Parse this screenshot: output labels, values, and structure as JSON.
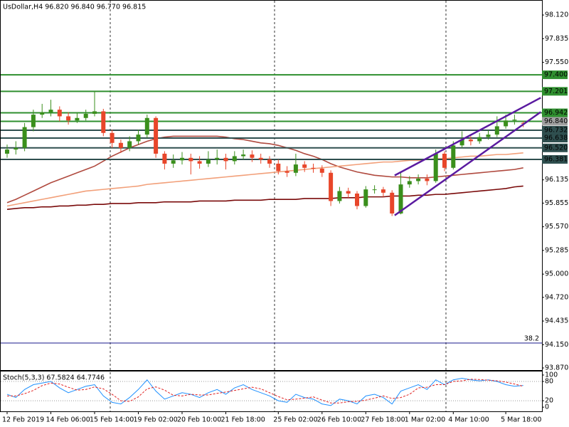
{
  "chart_data": [
    {
      "type": "candlestick",
      "title": "UsDollar,H4  96.820 96.840 96.770 96.815",
      "categories": [
        "12 Feb 2019",
        null,
        null,
        null,
        null,
        "14 Feb 06:00",
        null,
        null,
        null,
        null,
        "15 Feb 14:00",
        null,
        null,
        null,
        null,
        "19 Feb 02:00",
        null,
        null,
        null,
        null,
        "20 Feb 10:00",
        null,
        null,
        null,
        null,
        "21 Feb 18:00",
        null,
        null,
        null,
        null,
        null,
        "25 Feb 02:00",
        null,
        null,
        null,
        null,
        "26 Feb 10:00",
        null,
        null,
        null,
        null,
        "27 Feb 18:00",
        null,
        null,
        null,
        null,
        "1 Mar 02:00",
        null,
        null,
        null,
        null,
        "4 Mar 10:00",
        null,
        null,
        null,
        null,
        null,
        "5 Mar 18:00",
        null,
        null
      ],
      "open": [
        96.45,
        96.5,
        96.52,
        96.77,
        96.92,
        96.95,
        96.98,
        96.9,
        96.85,
        96.88,
        96.93,
        96.96,
        96.7,
        96.58,
        96.52,
        96.6,
        96.68,
        96.88,
        96.45,
        96.33,
        96.37,
        96.4,
        96.36,
        96.33,
        96.38,
        96.4,
        96.36,
        96.42,
        96.44,
        96.4,
        96.38,
        96.33,
        96.24,
        96.22,
        96.32,
        96.28,
        96.27,
        96.22,
        95.88,
        96.0,
        95.97,
        95.82,
        96.02,
        96.02,
        95.98,
        95.73,
        96.08,
        96.12,
        96.15,
        96.12,
        96.45,
        96.28,
        96.55,
        96.62,
        96.6,
        96.65,
        96.68,
        96.78,
        96.85,
        96.82
      ],
      "high": [
        96.56,
        96.6,
        96.82,
        96.98,
        97.05,
        97.1,
        97.02,
        96.95,
        96.94,
        96.98,
        97.2,
        96.99,
        96.74,
        96.62,
        96.66,
        96.74,
        96.92,
        96.9,
        96.48,
        96.44,
        96.47,
        96.45,
        96.42,
        96.48,
        96.5,
        96.45,
        96.48,
        96.5,
        96.49,
        96.45,
        96.42,
        96.38,
        96.3,
        96.45,
        96.36,
        96.33,
        96.31,
        96.25,
        96.05,
        96.04,
        96.0,
        96.06,
        96.07,
        96.05,
        96.01,
        96.22,
        96.18,
        96.2,
        96.2,
        96.5,
        96.48,
        96.6,
        96.72,
        96.66,
        96.7,
        96.73,
        96.9,
        96.92,
        96.92,
        96.84
      ],
      "low": [
        96.4,
        96.44,
        96.48,
        96.72,
        96.88,
        96.9,
        96.84,
        96.8,
        96.82,
        96.85,
        96.9,
        96.66,
        96.52,
        96.46,
        96.48,
        96.56,
        96.64,
        96.4,
        96.26,
        96.28,
        96.32,
        96.2,
        96.27,
        96.29,
        96.32,
        96.26,
        96.32,
        96.38,
        96.35,
        96.33,
        96.28,
        96.2,
        96.17,
        96.18,
        96.23,
        96.22,
        96.17,
        95.82,
        95.85,
        95.92,
        95.78,
        95.8,
        95.97,
        95.93,
        95.7,
        95.72,
        96.04,
        96.08,
        96.07,
        96.1,
        96.24,
        96.26,
        96.52,
        96.55,
        96.57,
        96.62,
        96.65,
        96.75,
        96.8,
        96.77
      ],
      "close": [
        96.5,
        96.52,
        96.77,
        96.92,
        96.95,
        96.98,
        96.9,
        96.85,
        96.88,
        96.93,
        96.96,
        96.7,
        96.58,
        96.52,
        96.6,
        96.68,
        96.88,
        96.45,
        96.33,
        96.37,
        96.4,
        96.36,
        96.33,
        96.38,
        96.4,
        96.36,
        96.42,
        96.44,
        96.4,
        96.38,
        96.33,
        96.24,
        96.22,
        96.32,
        96.28,
        96.27,
        96.22,
        95.88,
        96.0,
        95.97,
        95.82,
        96.02,
        96.02,
        95.98,
        95.73,
        96.08,
        96.12,
        96.15,
        96.12,
        96.45,
        96.28,
        96.55,
        96.62,
        96.6,
        96.65,
        96.68,
        96.78,
        96.85,
        96.86,
        96.815
      ],
      "up_color": "#3a8f1c",
      "down_color": "#e8462a",
      "series": [
        {
          "color": "#b04a3f",
          "values": [
            95.86,
            95.9,
            95.95,
            96.0,
            96.05,
            96.1,
            96.14,
            96.18,
            96.22,
            96.26,
            96.3,
            96.36,
            96.42,
            96.47,
            96.52,
            96.56,
            96.6,
            96.63,
            96.65,
            96.66,
            96.66,
            96.66,
            96.66,
            96.66,
            96.66,
            96.65,
            96.63,
            96.62,
            96.6,
            96.58,
            96.57,
            96.55,
            96.52,
            96.49,
            96.45,
            96.42,
            96.38,
            96.33,
            96.29,
            96.26,
            96.23,
            96.21,
            96.19,
            96.18,
            96.17,
            96.17,
            96.16,
            96.16,
            96.16,
            96.17,
            96.18,
            96.19,
            96.2,
            96.21,
            96.22,
            96.23,
            96.24,
            96.25,
            96.26,
            96.28
          ]
        },
        {
          "color": "#f2a07a",
          "values": [
            95.82,
            95.84,
            95.86,
            95.88,
            95.9,
            95.92,
            95.94,
            95.96,
            95.98,
            96.0,
            96.01,
            96.02,
            96.03,
            96.04,
            96.05,
            96.06,
            96.08,
            96.09,
            96.1,
            96.11,
            96.12,
            96.13,
            96.14,
            96.15,
            96.16,
            96.17,
            96.18,
            96.19,
            96.2,
            96.21,
            96.22,
            96.23,
            96.24,
            96.25,
            96.26,
            96.27,
            96.28,
            96.29,
            96.3,
            96.31,
            96.32,
            96.33,
            96.34,
            96.35,
            96.35,
            96.36,
            96.37,
            96.37,
            96.38,
            96.39,
            96.39,
            96.4,
            96.41,
            96.42,
            96.42,
            96.43,
            96.44,
            96.44,
            96.45,
            96.46
          ]
        },
        {
          "color": "#7a0a0a",
          "values": [
            95.78,
            95.79,
            95.8,
            95.8,
            95.81,
            95.81,
            95.82,
            95.82,
            95.83,
            95.83,
            95.84,
            95.84,
            95.85,
            95.85,
            95.85,
            95.86,
            95.86,
            95.86,
            95.87,
            95.87,
            95.87,
            95.87,
            95.88,
            95.88,
            95.88,
            95.88,
            95.89,
            95.89,
            95.89,
            95.89,
            95.9,
            95.9,
            95.9,
            95.9,
            95.91,
            95.91,
            95.91,
            95.91,
            95.92,
            95.92,
            95.92,
            95.93,
            95.93,
            95.93,
            95.94,
            95.94,
            95.94,
            95.95,
            95.95,
            95.96,
            95.96,
            95.97,
            95.98,
            95.99,
            96.0,
            96.01,
            96.02,
            96.03,
            96.05,
            96.06
          ]
        }
      ],
      "levels": [
        {
          "value": 97.4,
          "label": "97.400",
          "color": "#2f8f2f"
        },
        {
          "value": 97.201,
          "label": "97.201",
          "color": "#2f8f2f"
        },
        {
          "value": 96.942,
          "label": "96.942",
          "color": "#2f8f2f"
        },
        {
          "value": 96.84,
          "label": "96.840",
          "color": "#2f8f2f",
          "label_color": "#a0a0a0"
        },
        {
          "value": 96.732,
          "label": "96.732",
          "color": "#2f4f4f"
        },
        {
          "value": 96.638,
          "label": "96.638",
          "color": "#2f4f4f"
        },
        {
          "value": 96.52,
          "label": "96.520",
          "color": "#2f4f4f"
        },
        {
          "value": 96.381,
          "label": "96.381",
          "color": "#2f4f4f"
        }
      ],
      "fib": {
        "value": 94.17,
        "label": "38.2",
        "color": "#1a1a8c"
      },
      "channel": {
        "color": "#5a1aa0",
        "lines": [
          {
            "x": [
              44.3,
              61
            ],
            "y": [
              96.188,
              97.124
            ]
          },
          {
            "x": [
              44.3,
              61
            ],
            "y": [
              95.707,
              96.952
            ]
          }
        ]
      },
      "ylim": [
        93.836,
        98.292
      ],
      "yticks": [
        {
          "value": 98.12,
          "label": "98.120"
        },
        {
          "value": 97.835,
          "label": "97.835"
        },
        {
          "value": 97.55,
          "label": "97.550"
        },
        {
          "value": 96.135,
          "label": "96.135"
        },
        {
          "value": 95.855,
          "label": "95.855"
        },
        {
          "value": 95.57,
          "label": "95.570"
        },
        {
          "value": 95.285,
          "label": "95.285"
        },
        {
          "value": 95.0,
          "label": "95.000"
        },
        {
          "value": 94.72,
          "label": "94.720"
        },
        {
          "value": 94.435,
          "label": "94.435"
        },
        {
          "value": 94.15,
          "label": "94.150"
        },
        {
          "value": 93.87,
          "label": "93.870"
        }
      ]
    },
    {
      "type": "line",
      "title": "Stoch(5,3,3) 67.5824 64.7746",
      "series": [
        {
          "color": "#1e90ff",
          "dashed": false,
          "values": [
            40,
            30,
            55,
            70,
            75,
            80,
            60,
            45,
            55,
            65,
            70,
            35,
            15,
            10,
            30,
            55,
            85,
            50,
            25,
            35,
            45,
            40,
            30,
            45,
            55,
            40,
            60,
            70,
            55,
            45,
            35,
            20,
            15,
            40,
            30,
            25,
            10,
            5,
            25,
            20,
            10,
            35,
            40,
            30,
            10,
            50,
            60,
            70,
            55,
            85,
            70,
            85,
            90,
            85,
            82,
            85,
            80,
            70,
            65,
            67.5824
          ]
        },
        {
          "color": "#e02020",
          "dashed": true,
          "values": [
            35,
            35,
            42,
            52,
            67,
            75,
            72,
            62,
            53,
            55,
            63,
            57,
            40,
            20,
            18,
            32,
            57,
            63,
            53,
            37,
            35,
            40,
            38,
            38,
            43,
            47,
            52,
            57,
            62,
            57,
            45,
            33,
            23,
            25,
            28,
            32,
            22,
            13,
            13,
            17,
            18,
            22,
            28,
            35,
            27,
            30,
            40,
            60,
            62,
            70,
            70,
            80,
            82,
            87,
            86,
            84,
            82,
            78,
            72,
            64.7746
          ]
        }
      ],
      "levels": [
        80,
        20
      ],
      "ylim": [
        -13,
        111
      ],
      "yticks": [
        100,
        80,
        20,
        0
      ]
    }
  ]
}
